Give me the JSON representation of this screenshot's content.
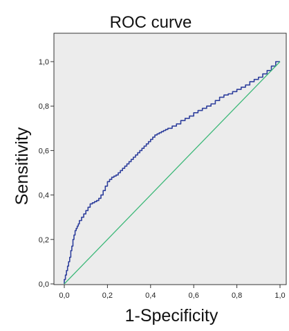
{
  "chart_data": {
    "type": "line",
    "title": "ROC curve",
    "xlabel": "1-Specificity",
    "ylabel": "Sensitivity",
    "xlim": [
      0,
      1
    ],
    "ylim": [
      0,
      1
    ],
    "xticks": [
      "0,0",
      "0,2",
      "0,4",
      "0,6",
      "0,8",
      "1,0"
    ],
    "yticks": [
      "0,0",
      "0,2",
      "0,4",
      "0,6",
      "0,8",
      "1,0"
    ],
    "grid": false,
    "background_color": "#ececec",
    "series": [
      {
        "color": "#2e3f9c",
        "style": "step",
        "x": [
          0.0,
          0.005,
          0.01,
          0.015,
          0.02,
          0.025,
          0.03,
          0.035,
          0.04,
          0.045,
          0.05,
          0.055,
          0.06,
          0.065,
          0.07,
          0.08,
          0.09,
          0.1,
          0.11,
          0.12,
          0.13,
          0.14,
          0.15,
          0.16,
          0.17,
          0.18,
          0.19,
          0.2,
          0.21,
          0.22,
          0.23,
          0.24,
          0.25,
          0.26,
          0.27,
          0.28,
          0.29,
          0.3,
          0.31,
          0.32,
          0.33,
          0.34,
          0.35,
          0.36,
          0.37,
          0.38,
          0.39,
          0.4,
          0.41,
          0.42,
          0.43,
          0.44,
          0.45,
          0.46,
          0.47,
          0.48,
          0.49,
          0.5,
          0.52,
          0.54,
          0.56,
          0.58,
          0.6,
          0.62,
          0.64,
          0.66,
          0.68,
          0.7,
          0.72,
          0.74,
          0.76,
          0.78,
          0.8,
          0.82,
          0.84,
          0.86,
          0.88,
          0.9,
          0.92,
          0.94,
          0.96,
          0.98,
          1.0
        ],
        "y": [
          0.0,
          0.02,
          0.04,
          0.06,
          0.08,
          0.1,
          0.12,
          0.15,
          0.17,
          0.2,
          0.22,
          0.24,
          0.25,
          0.26,
          0.27,
          0.285,
          0.3,
          0.315,
          0.33,
          0.345,
          0.36,
          0.365,
          0.37,
          0.375,
          0.385,
          0.4,
          0.42,
          0.44,
          0.46,
          0.47,
          0.48,
          0.485,
          0.49,
          0.5,
          0.51,
          0.52,
          0.53,
          0.54,
          0.55,
          0.56,
          0.57,
          0.58,
          0.59,
          0.6,
          0.61,
          0.62,
          0.63,
          0.64,
          0.65,
          0.66,
          0.67,
          0.675,
          0.68,
          0.685,
          0.69,
          0.695,
          0.7,
          0.7,
          0.71,
          0.72,
          0.735,
          0.745,
          0.755,
          0.77,
          0.78,
          0.79,
          0.8,
          0.81,
          0.825,
          0.84,
          0.85,
          0.855,
          0.865,
          0.875,
          0.885,
          0.895,
          0.91,
          0.92,
          0.93,
          0.945,
          0.96,
          0.98,
          1.0
        ]
      },
      {
        "color": "#3cb878",
        "style": "line",
        "x": [
          0,
          1
        ],
        "y": [
          0,
          1
        ]
      }
    ]
  }
}
